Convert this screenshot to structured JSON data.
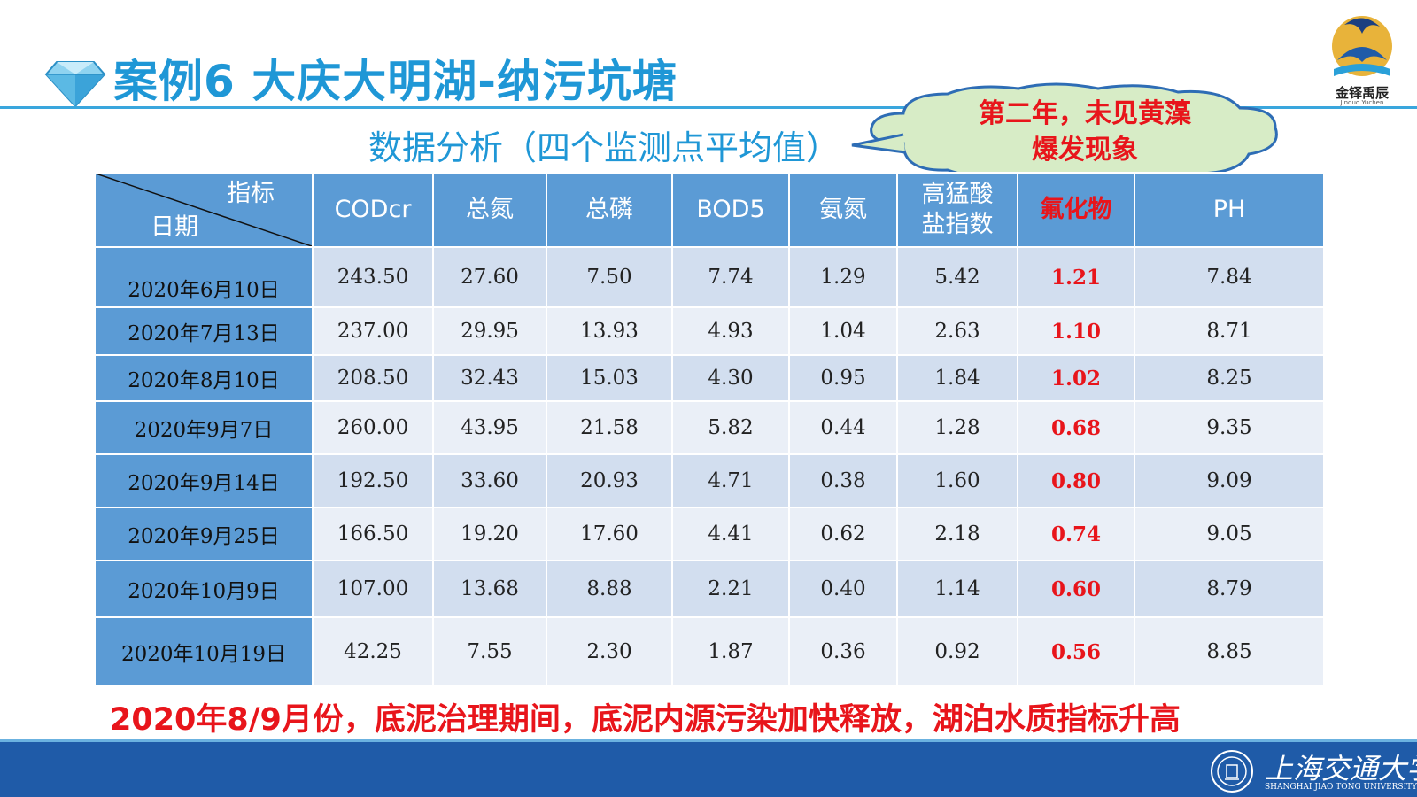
{
  "header": {
    "title": "案例6 大庆大明湖-纳污坑塘",
    "logo_text": "金铎禹辰",
    "logo_subtext": "Jinduo Yuchen"
  },
  "subtitle": "数据分析（四个监测点平均值）",
  "callout": {
    "line1": "第二年，未见黄藻",
    "line2": "爆发现象"
  },
  "table": {
    "corner_indicator": "指标",
    "corner_date": "日期",
    "columns": [
      {
        "label1": "CODcr",
        "label2": ""
      },
      {
        "label1": "总氮",
        "label2": ""
      },
      {
        "label1": "总磷",
        "label2": ""
      },
      {
        "label1": "BOD5",
        "label2": ""
      },
      {
        "label1": "氨氮",
        "label2": ""
      },
      {
        "label1": "高猛酸",
        "label2": "盐指数"
      },
      {
        "label1": "氟化物",
        "label2": ""
      },
      {
        "label1": "PH",
        "label2": ""
      }
    ],
    "rows": [
      {
        "date": "2020年6月10日",
        "values": [
          "243.50",
          "27.60",
          "7.50",
          "7.74",
          "1.29",
          "5.42",
          "1.21",
          "7.84"
        ]
      },
      {
        "date": "2020年7月13日",
        "values": [
          "237.00",
          "29.95",
          "13.93",
          "4.93",
          "1.04",
          "2.63",
          "1.10",
          "8.71"
        ]
      },
      {
        "date": "2020年8月10日",
        "values": [
          "208.50",
          "32.43",
          "15.03",
          "4.30",
          "0.95",
          "1.84",
          "1.02",
          "8.25"
        ]
      },
      {
        "date": "2020年9月7日",
        "values": [
          "260.00",
          "43.95",
          "21.58",
          "5.82",
          "0.44",
          "1.28",
          "0.68",
          "9.35"
        ]
      },
      {
        "date": "2020年9月14日",
        "values": [
          "192.50",
          "33.60",
          "20.93",
          "4.71",
          "0.38",
          "1.60",
          "0.80",
          "9.09"
        ]
      },
      {
        "date": "2020年9月25日",
        "values": [
          "166.50",
          "19.20",
          "17.60",
          "4.41",
          "0.62",
          "2.18",
          "0.74",
          "9.05"
        ]
      },
      {
        "date": "2020年10月9日",
        "values": [
          "107.00",
          "13.68",
          "8.88",
          "2.21",
          "0.40",
          "1.14",
          "0.60",
          "8.79"
        ]
      },
      {
        "date": "2020年10月19日",
        "values": [
          "42.25",
          "7.55",
          "2.30",
          "1.87",
          "0.36",
          "0.92",
          "0.56",
          "8.85"
        ]
      }
    ]
  },
  "note": "2020年8/9月份，底泥治理期间，底泥内源污染加快释放，湖泊水质指标升高",
  "footer": {
    "university_cn": "上海交通大学",
    "university_en": "SHANGHAI JIAO TONG UNIVERSITY"
  },
  "colors": {
    "accent_blue": "#1f97d6",
    "header_blue": "#5b9bd5",
    "highlight_red": "#e8151b",
    "footer_blue": "#1f5ba8"
  }
}
